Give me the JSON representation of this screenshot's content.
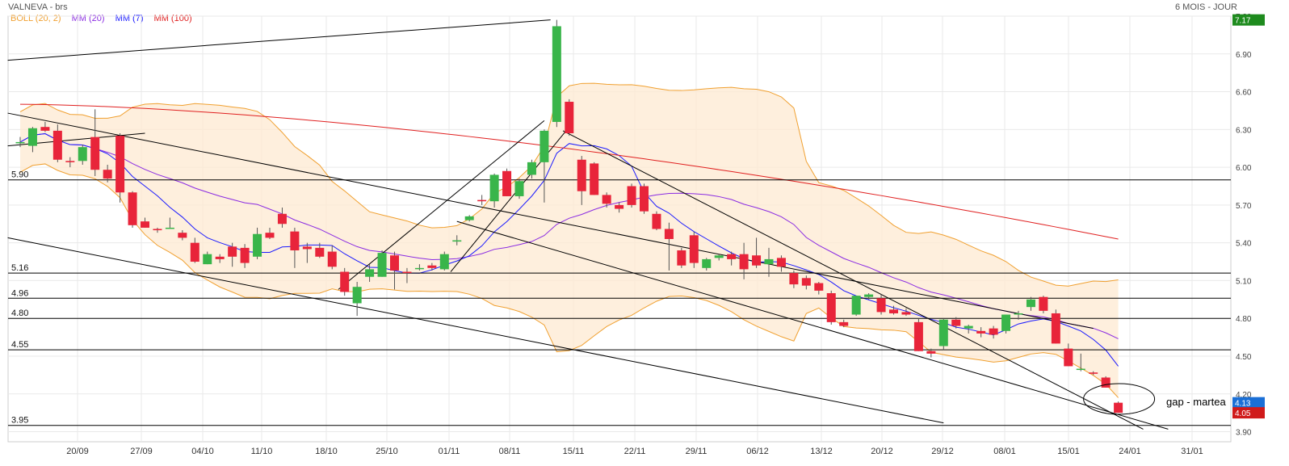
{
  "header": {
    "title": "VALNEVA - brs",
    "period": "6 MOIS - JOUR"
  },
  "chart_data": {
    "type": "candlestick",
    "title": "VALNEVA - brs",
    "period": "6 MOIS - JOUR",
    "ylim": [
      3.82,
      7.2
    ],
    "y_ticks": [
      "7.20",
      "6.90",
      "6.60",
      "6.30",
      "6.00",
      "5.70",
      "5.40",
      "5.10",
      "4.80",
      "4.50",
      "4.20",
      "3.90"
    ],
    "x_ticks": [
      "20/09",
      "27/09",
      "04/10",
      "11/10",
      "18/10",
      "25/10",
      "01/11",
      "08/11",
      "15/11",
      "22/11",
      "29/11",
      "06/12",
      "13/12",
      "20/12",
      "29/12",
      "08/01",
      "15/01",
      "24/01",
      "31/01"
    ],
    "legend": [
      {
        "label": "BOLL (20, 2)",
        "color": "#f0a030"
      },
      {
        "label": "MM (20)",
        "color": "#8a2be2"
      },
      {
        "label": "MM (7)",
        "color": "#1a1aff"
      },
      {
        "label": "MM (100)",
        "color": "#e02020"
      }
    ],
    "price_badges": [
      {
        "label": "7.17",
        "value": 7.17,
        "color": "#1e8b1e"
      },
      {
        "label": "4.13",
        "value": 4.13,
        "color": "#1a6fd6"
      },
      {
        "label": "4.05",
        "value": 4.05,
        "color": "#d01a1a"
      }
    ],
    "levels": [
      {
        "label": "5.90",
        "value": 5.9
      },
      {
        "label": "5.16",
        "value": 5.16
      },
      {
        "label": "4.96",
        "value": 4.96
      },
      {
        "label": "4.80",
        "value": 4.8
      },
      {
        "label": "4.55",
        "value": 4.55
      },
      {
        "label": "3.95",
        "value": 3.95
      }
    ],
    "annotation": "gap - martea",
    "candles": [
      [
        6.2,
        6.24,
        6.16,
        6.2
      ],
      [
        6.17,
        6.32,
        6.12,
        6.31
      ],
      [
        6.32,
        6.36,
        6.28,
        6.29
      ],
      [
        6.29,
        6.34,
        6.04,
        6.06
      ],
      [
        6.05,
        6.08,
        6.0,
        6.04
      ],
      [
        6.05,
        6.18,
        6.02,
        6.16
      ],
      [
        6.24,
        6.46,
        5.93,
        5.98
      ],
      [
        5.98,
        6.02,
        5.88,
        5.91
      ],
      [
        6.25,
        6.27,
        5.72,
        5.8
      ],
      [
        5.8,
        5.81,
        5.52,
        5.54
      ],
      [
        5.57,
        5.6,
        5.52,
        5.52
      ],
      [
        5.51,
        5.52,
        5.48,
        5.5
      ],
      [
        5.52,
        5.6,
        5.52,
        5.52
      ],
      [
        5.48,
        5.5,
        5.42,
        5.44
      ],
      [
        5.4,
        5.44,
        5.24,
        5.25
      ],
      [
        5.23,
        5.33,
        5.23,
        5.31
      ],
      [
        5.29,
        5.31,
        5.24,
        5.27
      ],
      [
        5.37,
        5.4,
        5.21,
        5.29
      ],
      [
        5.36,
        5.39,
        5.2,
        5.24
      ],
      [
        5.29,
        5.52,
        5.27,
        5.47
      ],
      [
        5.48,
        5.52,
        5.43,
        5.44
      ],
      [
        5.63,
        5.68,
        5.52,
        5.55
      ],
      [
        5.49,
        5.52,
        5.2,
        5.34
      ],
      [
        5.37,
        5.4,
        5.24,
        5.35
      ],
      [
        5.36,
        5.4,
        5.28,
        5.29
      ],
      [
        5.33,
        5.38,
        5.19,
        5.21
      ],
      [
        5.17,
        5.2,
        4.98,
        5.01
      ],
      [
        4.92,
        5.09,
        4.82,
        5.05
      ],
      [
        5.13,
        5.23,
        5.09,
        5.19
      ],
      [
        5.13,
        5.34,
        5.13,
        5.32
      ],
      [
        5.3,
        5.33,
        5.03,
        5.18
      ],
      [
        5.17,
        5.2,
        5.08,
        5.16
      ],
      [
        5.2,
        5.23,
        5.18,
        5.2
      ],
      [
        5.22,
        5.24,
        5.18,
        5.2
      ],
      [
        5.19,
        5.33,
        5.18,
        5.31
      ],
      [
        5.41,
        5.46,
        5.38,
        5.42
      ],
      [
        5.58,
        5.62,
        5.57,
        5.61
      ],
      [
        5.74,
        5.78,
        5.7,
        5.73
      ],
      [
        5.73,
        5.95,
        5.68,
        5.94
      ],
      [
        5.97,
        5.99,
        5.77,
        5.77
      ],
      [
        5.77,
        5.91,
        5.75,
        5.89
      ],
      [
        5.94,
        6.06,
        5.91,
        6.04
      ],
      [
        6.04,
        6.3,
        5.72,
        6.29
      ],
      [
        6.36,
        7.17,
        6.32,
        7.12
      ],
      [
        6.52,
        6.54,
        6.25,
        6.27
      ],
      [
        6.06,
        6.09,
        5.7,
        5.81
      ],
      [
        6.03,
        6.04,
        5.78,
        5.78
      ],
      [
        5.78,
        5.8,
        5.68,
        5.71
      ],
      [
        5.7,
        5.72,
        5.64,
        5.67
      ],
      [
        5.85,
        5.87,
        5.68,
        5.7
      ],
      [
        5.85,
        5.87,
        5.63,
        5.65
      ],
      [
        5.63,
        5.65,
        5.5,
        5.51
      ],
      [
        5.51,
        5.56,
        5.18,
        5.43
      ],
      [
        5.34,
        5.36,
        5.2,
        5.22
      ],
      [
        5.46,
        5.49,
        5.2,
        5.24
      ],
      [
        5.2,
        5.28,
        5.18,
        5.27
      ],
      [
        5.28,
        5.31,
        5.26,
        5.3
      ],
      [
        5.31,
        5.33,
        5.22,
        5.27
      ],
      [
        5.31,
        5.4,
        5.11,
        5.19
      ],
      [
        5.3,
        5.44,
        5.2,
        5.22
      ],
      [
        5.23,
        5.36,
        5.13,
        5.27
      ],
      [
        5.28,
        5.3,
        5.17,
        5.21
      ],
      [
        5.16,
        5.18,
        5.04,
        5.07
      ],
      [
        5.12,
        5.14,
        5.03,
        5.06
      ],
      [
        5.08,
        5.09,
        4.99,
        5.02
      ],
      [
        5.0,
        5.02,
        4.75,
        4.77
      ],
      [
        4.77,
        4.79,
        4.73,
        4.74
      ],
      [
        4.83,
        4.98,
        4.82,
        4.98
      ],
      [
        4.97,
        5.0,
        4.95,
        4.99
      ],
      [
        4.96,
        4.99,
        4.83,
        4.85
      ],
      [
        4.87,
        4.9,
        4.83,
        4.84
      ],
      [
        4.85,
        4.88,
        4.82,
        4.83
      ],
      [
        4.77,
        4.8,
        4.54,
        4.54
      ],
      [
        4.54,
        4.56,
        4.49,
        4.52
      ],
      [
        4.58,
        4.8,
        4.55,
        4.79
      ],
      [
        4.79,
        4.81,
        4.72,
        4.74
      ],
      [
        4.72,
        4.75,
        4.68,
        4.74
      ],
      [
        4.7,
        4.73,
        4.65,
        4.68
      ],
      [
        4.72,
        4.74,
        4.64,
        4.67
      ],
      [
        4.7,
        4.83,
        4.68,
        4.83
      ],
      [
        4.83,
        4.86,
        4.79,
        4.84
      ],
      [
        4.89,
        4.97,
        4.86,
        4.95
      ],
      [
        4.97,
        4.98,
        4.84,
        4.86
      ],
      [
        4.84,
        4.87,
        4.6,
        4.6
      ],
      [
        4.56,
        4.6,
        4.42,
        4.42
      ],
      [
        4.4,
        4.52,
        4.38,
        4.4
      ],
      [
        4.37,
        4.38,
        4.35,
        4.36
      ],
      [
        4.33,
        4.34,
        4.25,
        4.25
      ],
      [
        4.13,
        4.14,
        4.05,
        4.05
      ]
    ]
  }
}
